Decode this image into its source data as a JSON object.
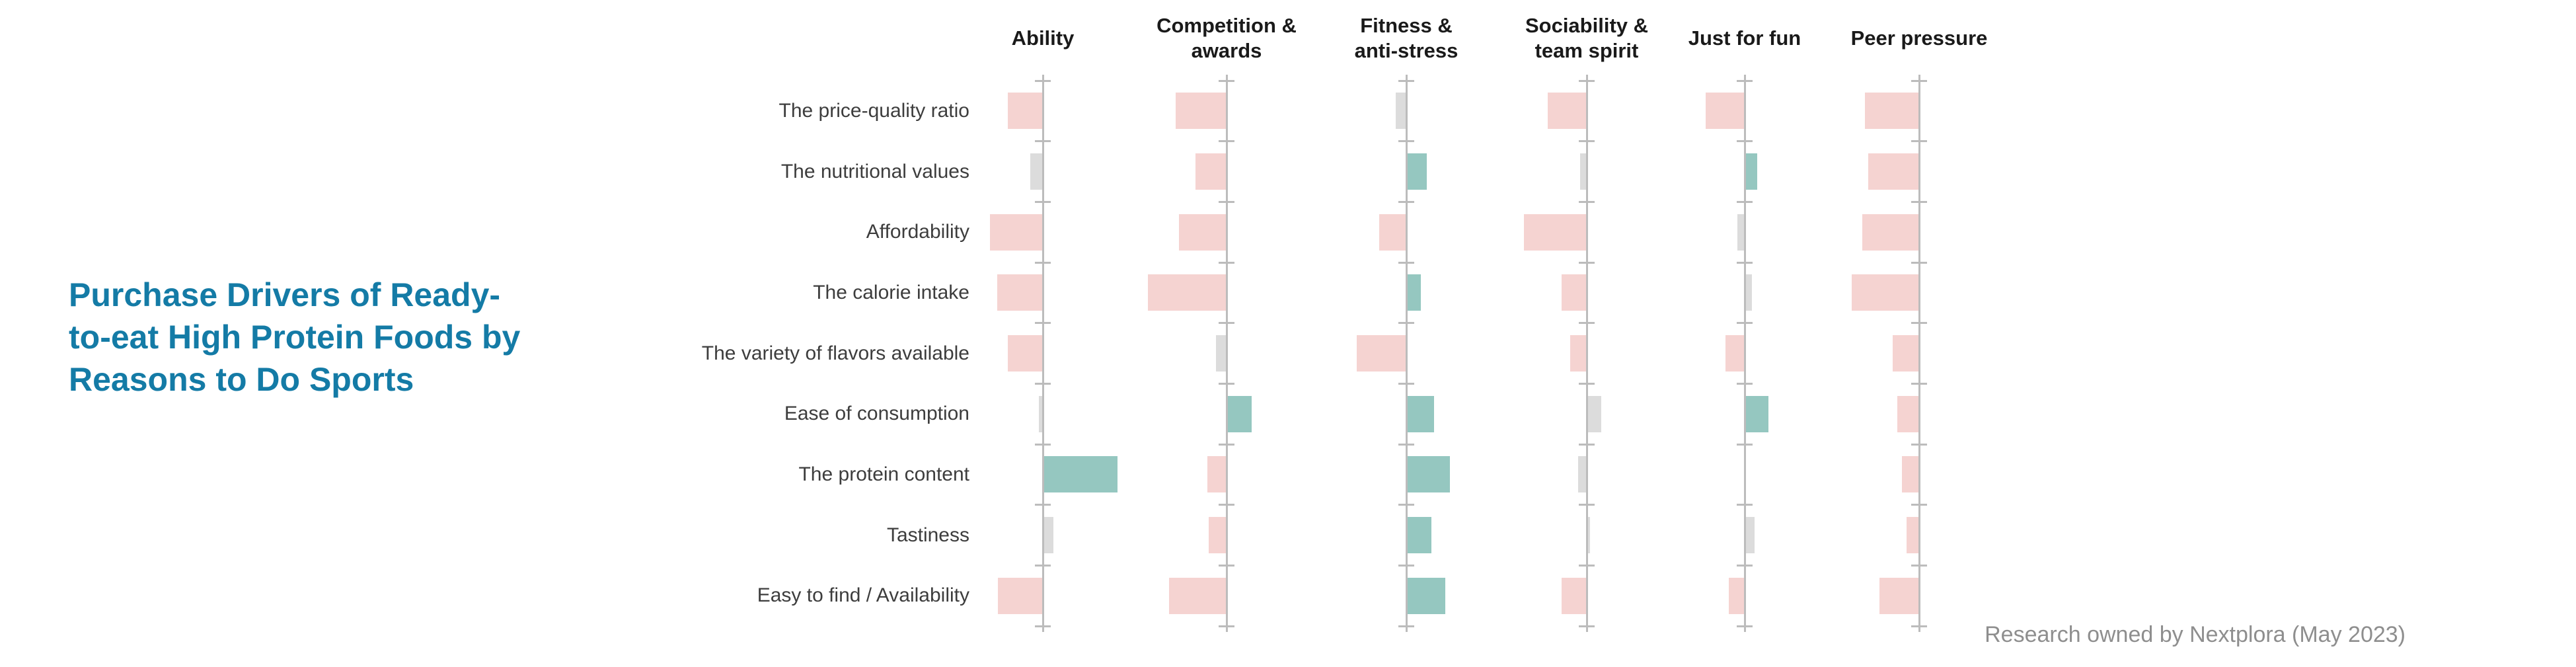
{
  "title": {
    "text": "Purchase Drivers of Ready-\nto-eat High Protein Foods by\nReasons to Do Sports",
    "color": "#147ba6"
  },
  "footer": {
    "text": "Research owned by Nextplora (May 2023)"
  },
  "chart_data": {
    "type": "bar",
    "variant": "diverging-horizontal-small-multiples",
    "title": "Purchase Drivers of Ready-to-eat High Protein Foods by Reasons to Do Sports",
    "value_note": "No numeric axis labels are shown in the source; values are relative bar lengths (estimated, arbitrary units). Negative = bar extends left of the column axis, positive = extends right.",
    "rows": [
      "The price-quality ratio",
      "The nutritional values",
      "Affordability",
      "The calorie intake",
      "The variety of flavors available",
      "Ease of consumption",
      "The protein content",
      "Tastiness",
      "Easy to find / Availability"
    ],
    "columns": [
      "Ability",
      "Competition &\nawards",
      "Fitness &\nanti-stress",
      "Sociability &\nteam spirit",
      "Just for fun",
      "Peer pressure"
    ],
    "series": [
      {
        "name": "Ability",
        "values": [
          -53,
          -19,
          -80,
          -69,
          -53,
          -6,
          112,
          15,
          -68
        ],
        "tones": [
          "neg",
          "neu",
          "neg",
          "neg",
          "neg",
          "neu",
          "pos",
          "neu",
          "neg"
        ]
      },
      {
        "name": "Competition & awards",
        "values": [
          -77,
          -47,
          -72,
          -119,
          -16,
          37,
          -29,
          -27,
          -87
        ],
        "tones": [
          "neg",
          "neg",
          "neg",
          "neg",
          "neu",
          "pos",
          "neg",
          "neg",
          "neg"
        ]
      },
      {
        "name": "Fitness & anti-stress",
        "values": [
          -16,
          30,
          -41,
          21,
          -75,
          41,
          65,
          37,
          58
        ],
        "tones": [
          "neu",
          "pos",
          "neg",
          "pos",
          "neg",
          "pos",
          "pos",
          "pos",
          "pos"
        ]
      },
      {
        "name": "Sociability & team spirit",
        "values": [
          -59,
          -10,
          -95,
          -38,
          -25,
          21,
          -13,
          4,
          -38
        ],
        "tones": [
          "neg",
          "neu",
          "neg",
          "neg",
          "neg",
          "neu",
          "neu",
          "neu",
          "neg"
        ]
      },
      {
        "name": "Just for fun",
        "values": [
          -59,
          18,
          -11,
          10,
          -29,
          35,
          0,
          14,
          -24
        ],
        "tones": [
          "neg",
          "pos",
          "neu",
          "neu",
          "neg",
          "pos",
          "neu",
          "neu",
          "neg"
        ]
      },
      {
        "name": "Peer pressure",
        "values": [
          -82,
          -77,
          -86,
          -102,
          -40,
          -33,
          -26,
          -19,
          -60
        ],
        "tones": [
          "neg",
          "neg",
          "neg",
          "neg",
          "neg",
          "neg",
          "neg",
          "neg",
          "neg"
        ]
      }
    ],
    "colors": {
      "positive": "#95c7c0",
      "negative": "#f5d3d1",
      "neutral": "#dcdcdc",
      "axis": "#bcbcbc"
    },
    "legend": "none",
    "grid": "off"
  }
}
